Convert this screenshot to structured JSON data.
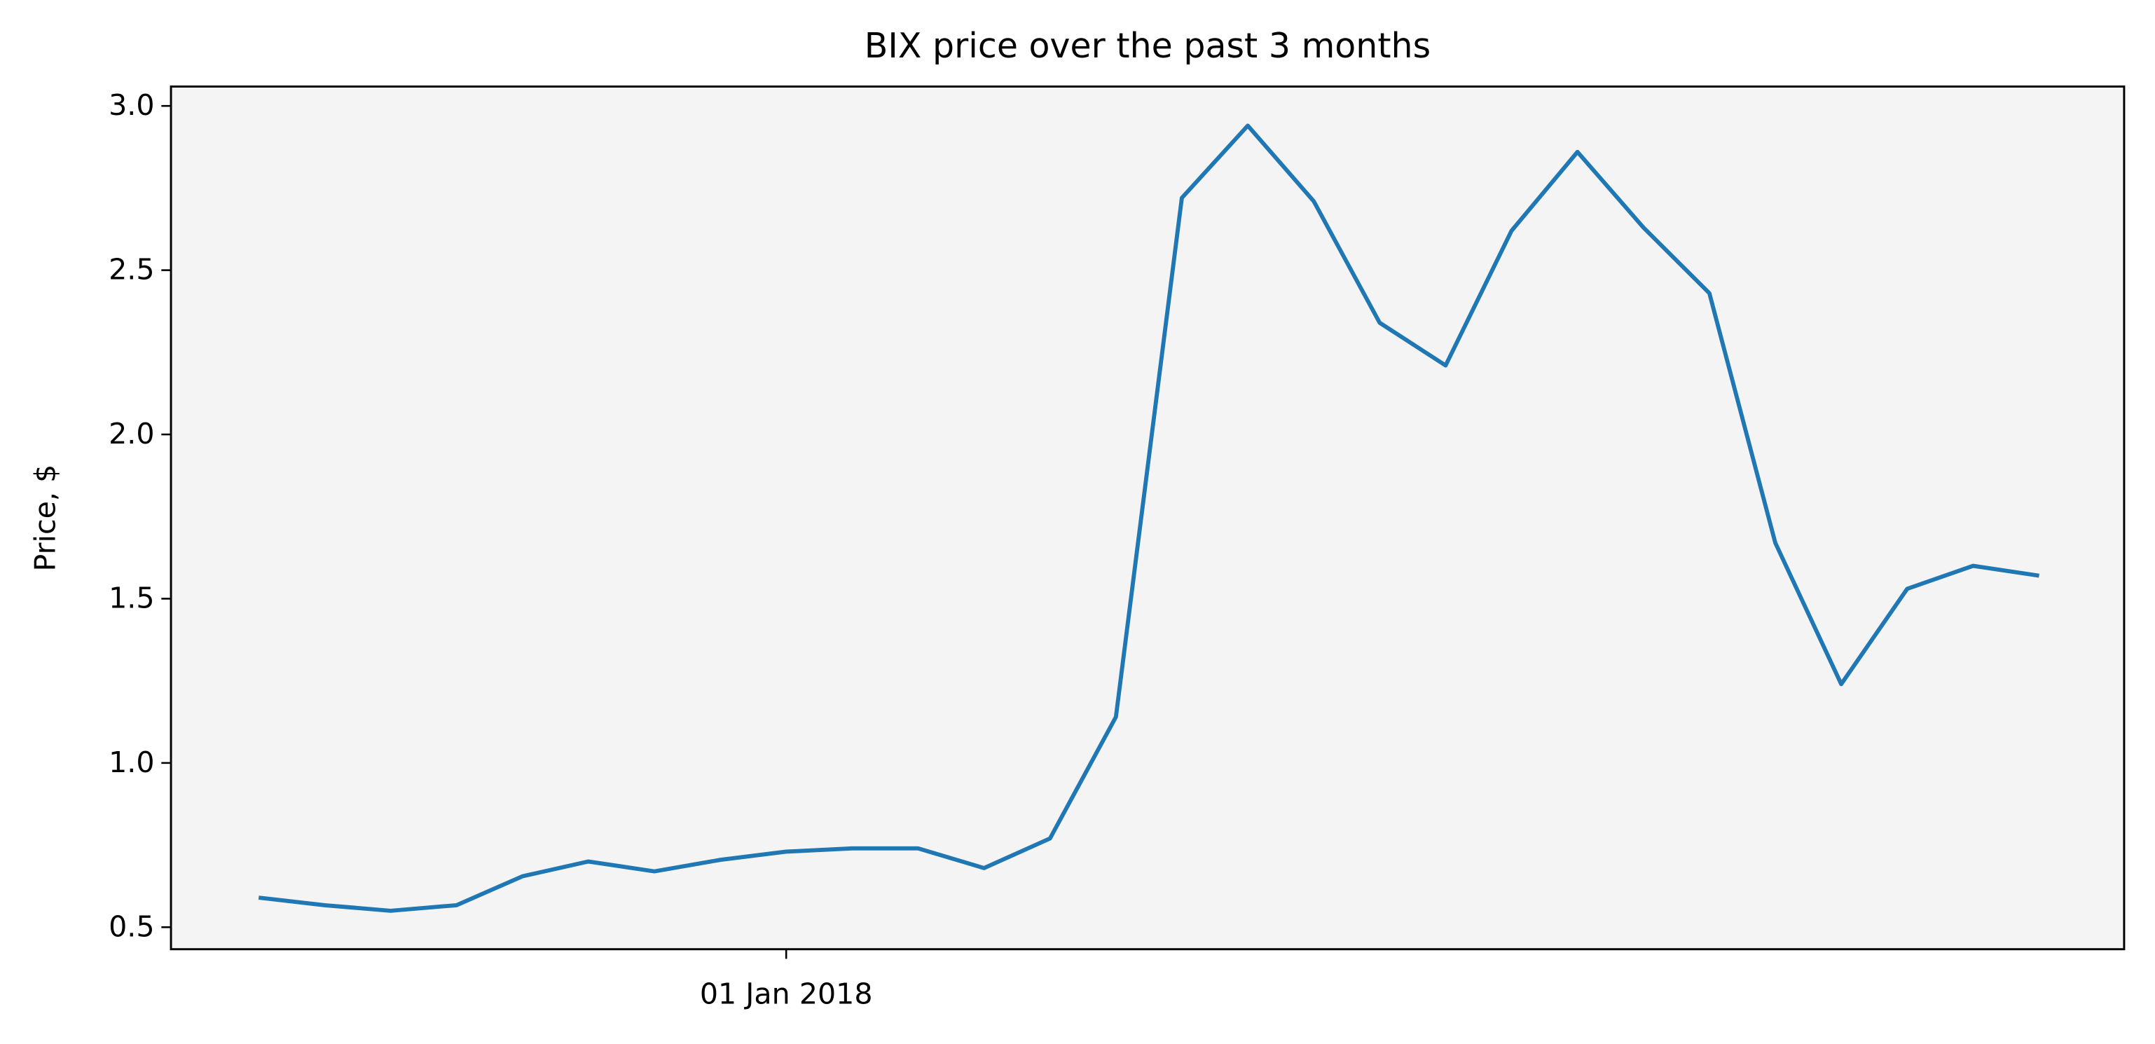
{
  "chart_data": {
    "type": "line",
    "title": "BIX price over the past 3 months",
    "y_label": "Price, $",
    "categories": [
      null,
      null,
      null,
      null,
      null,
      null,
      null,
      null,
      "01 Jan 2018",
      null,
      null,
      null,
      null,
      null,
      null,
      null,
      null,
      null,
      null,
      null,
      null,
      null,
      null,
      null,
      null,
      null,
      null,
      null
    ],
    "series": [
      {
        "name": "BIX",
        "color": "#1f77b4",
        "values": [
          0.59,
          0.567,
          0.55,
          0.567,
          0.655,
          0.7,
          0.67,
          0.705,
          0.73,
          0.74,
          0.74,
          0.68,
          0.77,
          1.14,
          2.72,
          2.94,
          2.71,
          2.34,
          2.21,
          2.62,
          2.86,
          2.63,
          2.43,
          1.67,
          1.24,
          1.53,
          1.6,
          1.57
        ]
      }
    ],
    "ylim": [
      0.433,
      3.059
    ],
    "yticks": [
      0.5,
      {
        "value": 1,
        "label": "1.0"
      },
      1.5,
      {
        "value": 2,
        "label": "2.0"
      },
      2.5,
      {
        "value": 3,
        "label": "3.0"
      }
    ],
    "grid": false,
    "plot_background": "#f4f4f4"
  }
}
